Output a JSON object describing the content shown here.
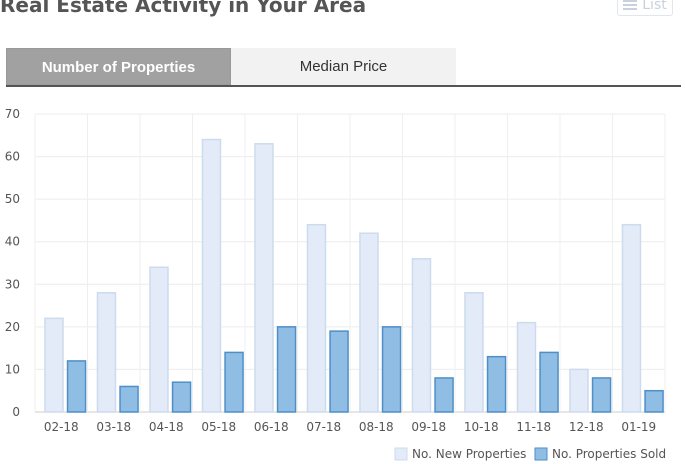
{
  "header": {
    "title": "Real Estate Activity in Your Area",
    "list_label": "List",
    "list_icon": "list-icon"
  },
  "tabs": [
    {
      "label": "Number of Properties",
      "active": true
    },
    {
      "label": "Median Price",
      "active": false
    }
  ],
  "chart_data": {
    "type": "bar",
    "categories": [
      "02-18",
      "03-18",
      "04-18",
      "05-18",
      "06-18",
      "07-18",
      "08-18",
      "09-18",
      "10-18",
      "11-18",
      "12-18",
      "01-19"
    ],
    "series": [
      {
        "name": "No. New Properties",
        "values": [
          22,
          28,
          34,
          64,
          63,
          44,
          42,
          36,
          28,
          21,
          10,
          44
        ],
        "fill": "#e2ebf7",
        "stroke": "#cddbee"
      },
      {
        "name": "No. Properties Sold",
        "values": [
          12,
          6,
          7,
          14,
          20,
          19,
          20,
          8,
          13,
          14,
          8,
          5
        ],
        "fill": "#90bde3",
        "stroke": "#4e8fc8"
      }
    ],
    "ylim": [
      0,
      70
    ],
    "yticks": [
      0,
      10,
      20,
      30,
      40,
      50,
      60,
      70
    ],
    "grid": true,
    "legend": "bottom-right"
  }
}
